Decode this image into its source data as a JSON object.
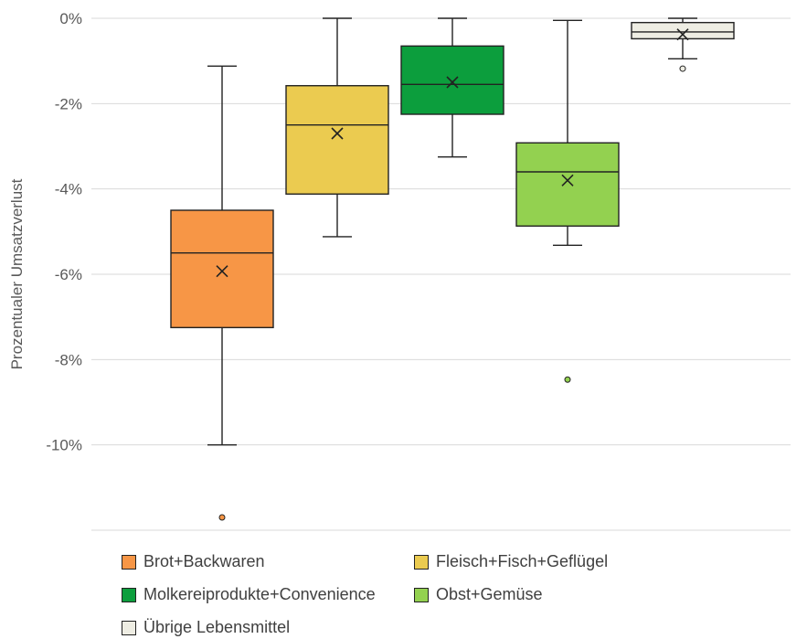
{
  "chart_data": {
    "type": "box",
    "ylabel": "Prozentualer Umsatzverlust",
    "ylim": [
      -12,
      0
    ],
    "yticks": [
      0,
      -2,
      -4,
      -6,
      -8,
      -10
    ],
    "ytick_labels": [
      "0%",
      "-2%",
      "-4%",
      "-6%",
      "-8%",
      "-10%"
    ],
    "grid": true,
    "legend_position": "bottom",
    "series": [
      {
        "name": "Brot+Backwaren",
        "color": "#F79646",
        "min": -10.0,
        "q1": -7.25,
        "median": -5.5,
        "q3": -4.5,
        "max": -1.12,
        "mean": -5.93,
        "outliers": [
          -11.7
        ]
      },
      {
        "name": "Fleisch+Fisch+Geflügel",
        "color": "#EBCB50",
        "min": -5.12,
        "q1": -4.12,
        "median": -2.5,
        "q3": -1.58,
        "max": 0.0,
        "mean": -2.7,
        "outliers": []
      },
      {
        "name": "Molkereiprodukte+Convenience",
        "color": "#0C9E3D",
        "min": -3.25,
        "q1": -2.25,
        "median": -1.55,
        "q3": -0.65,
        "max": 0.0,
        "mean": -1.5,
        "outliers": []
      },
      {
        "name": "Obst+Gemüse",
        "color": "#93D150",
        "min": -5.32,
        "q1": -4.87,
        "median": -3.6,
        "q3": -2.92,
        "max": -0.05,
        "mean": -3.8,
        "outliers": [
          -8.47
        ]
      },
      {
        "name": "Übrige Lebensmittel",
        "color": "#EEEDE3",
        "min": -0.95,
        "q1": -0.48,
        "median": -0.32,
        "q3": -0.1,
        "max": 0.0,
        "mean": -0.38,
        "outliers": [
          -1.18
        ]
      }
    ]
  }
}
